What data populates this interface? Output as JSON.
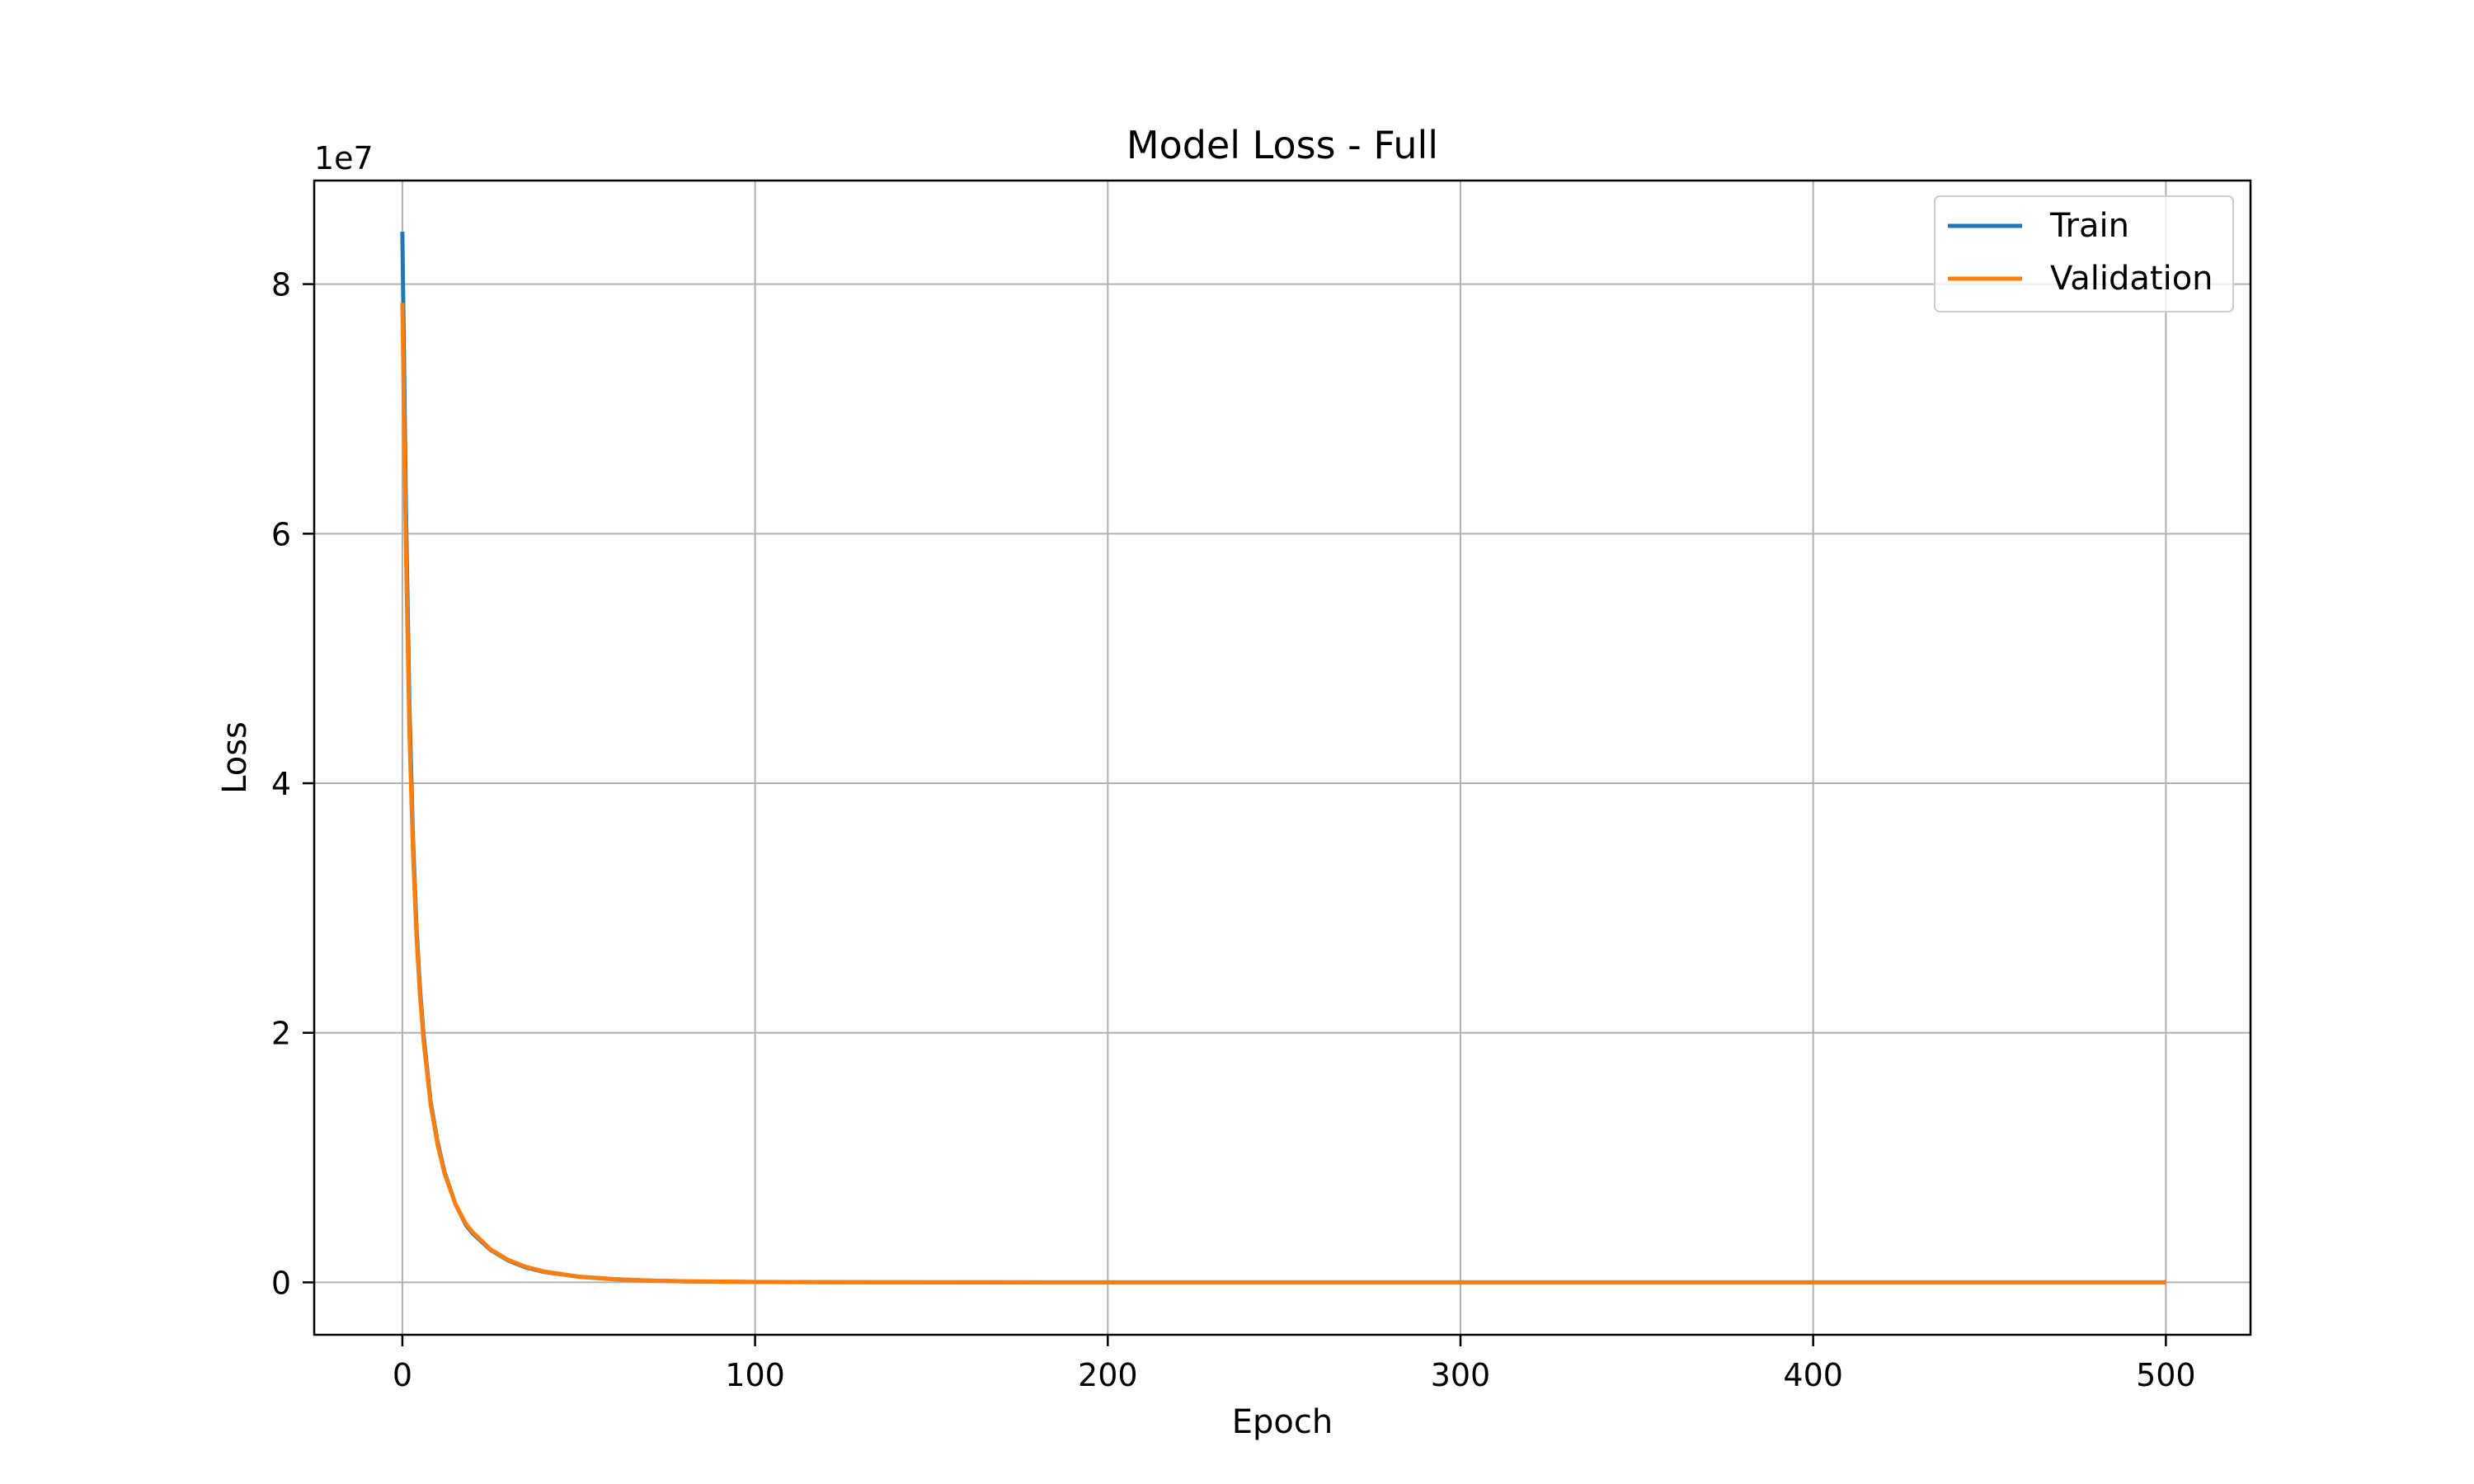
{
  "chart_data": {
    "type": "line",
    "title": "Model Loss - Full",
    "xlabel": "Epoch",
    "ylabel": "Loss",
    "y_offset_label": "1e7",
    "xlim": [
      -25,
      524
    ],
    "ylim": [
      -4200000,
      88300000
    ],
    "x_ticks": [
      0,
      100,
      200,
      300,
      400,
      500
    ],
    "y_ticks": [
      0,
      20000000,
      40000000,
      60000000,
      80000000
    ],
    "y_tick_labels": [
      "0",
      "2",
      "4",
      "6",
      "8"
    ],
    "grid": true,
    "legend_position": "top-right",
    "series": [
      {
        "name": "Train",
        "color": "#1f77b4",
        "points": [
          [
            0,
            84200000
          ],
          [
            1,
            62000000
          ],
          [
            2,
            46000000
          ],
          [
            3,
            35500000
          ],
          [
            4,
            28500000
          ],
          [
            5,
            23500000
          ],
          [
            6,
            19800000
          ],
          [
            8,
            14500000
          ],
          [
            10,
            11200000
          ],
          [
            12,
            8800000
          ],
          [
            15,
            6300000
          ],
          [
            18,
            4600000
          ],
          [
            20,
            3900000
          ],
          [
            25,
            2600000
          ],
          [
            30,
            1750000
          ],
          [
            35,
            1200000
          ],
          [
            40,
            850000
          ],
          [
            50,
            450000
          ],
          [
            60,
            250000
          ],
          [
            70,
            140000
          ],
          [
            80,
            80000
          ],
          [
            100,
            30000
          ],
          [
            150,
            5000
          ],
          [
            200,
            1000
          ],
          [
            300,
            200
          ],
          [
            400,
            80
          ],
          [
            500,
            40
          ]
        ]
      },
      {
        "name": "Validation",
        "color": "#ff7f0e",
        "points": [
          [
            0,
            78500000
          ],
          [
            1,
            59000000
          ],
          [
            2,
            44000000
          ],
          [
            3,
            34500000
          ],
          [
            4,
            27800000
          ],
          [
            5,
            23000000
          ],
          [
            6,
            19400000
          ],
          [
            8,
            14300000
          ],
          [
            10,
            11000000
          ],
          [
            12,
            8700000
          ],
          [
            15,
            6300000
          ],
          [
            18,
            4700000
          ],
          [
            20,
            4000000
          ],
          [
            25,
            2650000
          ],
          [
            30,
            1800000
          ],
          [
            35,
            1250000
          ],
          [
            40,
            880000
          ],
          [
            50,
            460000
          ],
          [
            60,
            260000
          ],
          [
            70,
            145000
          ],
          [
            80,
            85000
          ],
          [
            100,
            32000
          ],
          [
            150,
            6000
          ],
          [
            200,
            1200
          ],
          [
            300,
            250
          ],
          [
            400,
            100
          ],
          [
            500,
            50
          ]
        ]
      }
    ]
  }
}
